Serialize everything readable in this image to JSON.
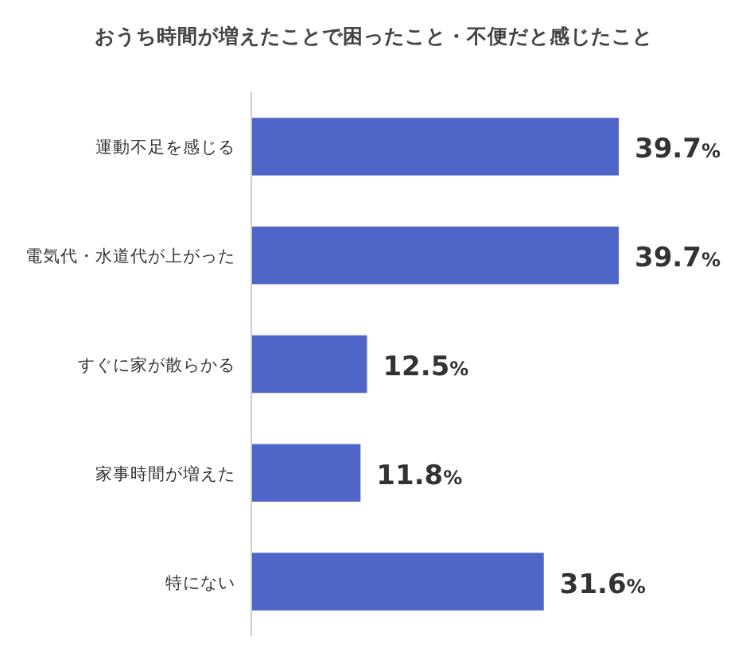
{
  "chart_data": {
    "type": "bar",
    "orientation": "horizontal",
    "title": "おうち時間が増えたことで困ったこと・不便だと感じたこと",
    "categories": [
      "運動不足を感じる",
      "電気代・水道代が上がった",
      "すぐに家が散らかる",
      "家事時間が増えた",
      "特にない"
    ],
    "values": [
      39.7,
      39.7,
      12.5,
      11.8,
      31.6
    ],
    "value_labels": [
      "39.7%",
      "39.7%",
      "12.5%",
      "11.8%",
      "31.6%"
    ],
    "color": "#4f65c8"
  }
}
